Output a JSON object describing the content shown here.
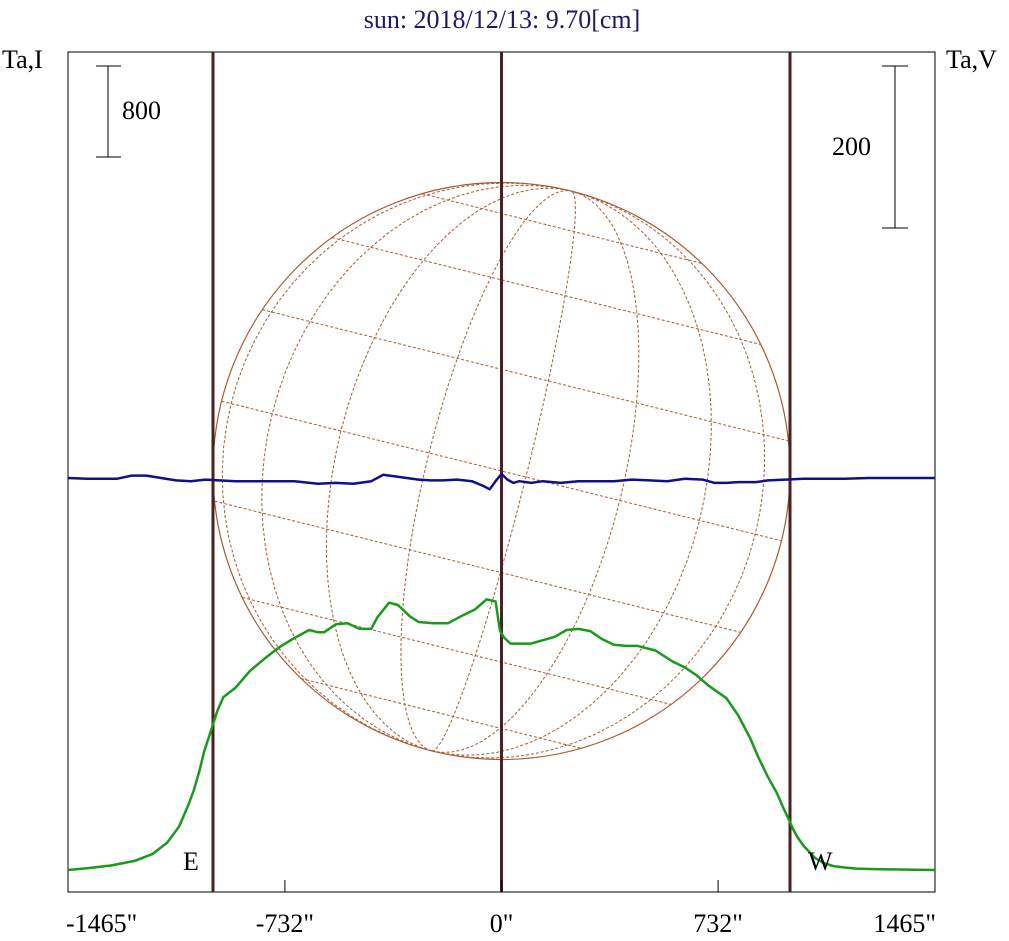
{
  "chart_data": {
    "type": "line",
    "title": "sun: 2018/12/13: 9.70[cm]",
    "ylabel_left": "Ta,I",
    "ylabel_right": "Ta,V",
    "scale_left_label": "800",
    "scale_right_label": "200",
    "limb_east_label": "E",
    "limb_west_label": "W",
    "xlim": [
      -1465,
      1465
    ],
    "x_ticks": [
      -1465,
      -732,
      0,
      732,
      1465
    ],
    "x_tick_labels": [
      "-1465\"",
      "-732\"",
      "0\"",
      "732\"",
      "1465\""
    ],
    "limb_lines_x": [
      -975,
      0,
      975
    ],
    "colors": {
      "title": "#1a1a66",
      "intensity": "#1a9a1a",
      "polarization": "#10108a",
      "limb": "#4a2020",
      "grid": "#a85a30"
    },
    "series": [
      {
        "key": "I",
        "x": [
          -1465,
          -1400,
          -1320,
          -1240,
          -1180,
          -1130,
          -1090,
          -1060,
          -1040,
          -1020,
          -1005,
          -990,
          -975,
          -960,
          -940,
          -900,
          -850,
          -800,
          -750,
          -700,
          -650,
          -620,
          -600,
          -560,
          -520,
          -480,
          -440,
          -420,
          -380,
          -350,
          -330,
          -310,
          -280,
          -230,
          -180,
          -130,
          -90,
          -50,
          -20,
          -5,
          10,
          30,
          60,
          100,
          140,
          180,
          220,
          260,
          300,
          340,
          380,
          420,
          460,
          520,
          580,
          620,
          660,
          700,
          760,
          800,
          840,
          870,
          900,
          930,
          950,
          970,
          985,
          1000,
          1020,
          1040,
          1060,
          1090,
          1120,
          1160,
          1200,
          1260,
          1320,
          1400,
          1465
        ],
        "y": [
          0,
          15,
          40,
          80,
          140,
          240,
          380,
          560,
          700,
          880,
          1040,
          1160,
          1280,
          1400,
          1520,
          1600,
          1750,
          1860,
          1960,
          2040,
          2110,
          2090,
          2090,
          2160,
          2170,
          2120,
          2120,
          2220,
          2350,
          2330,
          2280,
          2230,
          2180,
          2170,
          2170,
          2240,
          2290,
          2380,
          2360,
          2100,
          2040,
          1990,
          1990,
          1990,
          2020,
          2050,
          2110,
          2120,
          2100,
          2030,
          1980,
          1970,
          1970,
          1930,
          1830,
          1780,
          1710,
          1620,
          1510,
          1360,
          1160,
          980,
          820,
          680,
          560,
          450,
          360,
          290,
          215,
          160,
          105,
          60,
          35,
          22,
          12,
          8,
          5,
          2,
          0
        ]
      },
      {
        "key": "V",
        "x": [
          -1465,
          -1400,
          -1300,
          -1250,
          -1200,
          -1100,
          -1050,
          -1000,
          -900,
          -800,
          -700,
          -620,
          -560,
          -500,
          -440,
          -400,
          -360,
          -320,
          -280,
          -240,
          -200,
          -150,
          -100,
          -60,
          -40,
          -20,
          0,
          20,
          40,
          60,
          100,
          140,
          200,
          260,
          320,
          380,
          440,
          500,
          560,
          620,
          680,
          720,
          760,
          800,
          860,
          900,
          960,
          1020,
          1080,
          1160,
          1240,
          1320,
          1400,
          1465
        ],
        "y": [
          0,
          -1,
          -1,
          3,
          3,
          -3,
          -4,
          -2,
          -4,
          -4,
          -4,
          -7,
          -6,
          -7,
          -4,
          4,
          2,
          0,
          -2,
          -3,
          -3,
          -2,
          -4,
          -10,
          -14,
          -4,
          5,
          -2,
          -6,
          -4,
          -6,
          -4,
          -6,
          -4,
          -4,
          -4,
          -2,
          -3,
          -4,
          -1,
          -2,
          -6,
          -6,
          -5,
          -5,
          -3,
          -2,
          -1,
          -1,
          -1,
          0,
          0,
          0,
          0
        ]
      }
    ]
  }
}
